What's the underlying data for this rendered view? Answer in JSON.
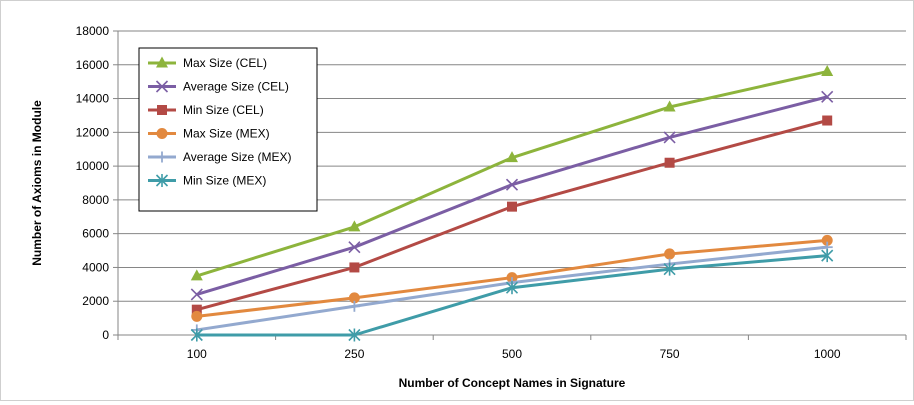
{
  "chart_data": {
    "type": "line",
    "title": "",
    "xlabel": "Number of Concept Names in Signature",
    "ylabel": "Number of Axioms in Module",
    "categories": [
      "100",
      "250",
      "500",
      "750",
      "1000"
    ],
    "ylim": [
      0,
      18000
    ],
    "yticks": [
      0,
      2000,
      4000,
      6000,
      8000,
      10000,
      12000,
      14000,
      16000,
      18000
    ],
    "grid": "horizontal",
    "legend_position": "top-left",
    "series": [
      {
        "name": "Max Size (CEL)",
        "values": [
          3500,
          6400,
          10500,
          13500,
          15600
        ],
        "color": "#8db43c",
        "marker": "triangle"
      },
      {
        "name": "Average Size (CEL)",
        "values": [
          2400,
          5200,
          8900,
          11700,
          14100
        ],
        "color": "#7b5ea4",
        "marker": "x"
      },
      {
        "name": "Min Size (CEL)",
        "values": [
          1500,
          4000,
          7600,
          10200,
          12700
        ],
        "color": "#b34a45",
        "marker": "square"
      },
      {
        "name": "Max Size (MEX)",
        "values": [
          1100,
          2200,
          3400,
          4800,
          5600
        ],
        "color": "#e2893f",
        "marker": "circle"
      },
      {
        "name": "Average Size (MEX)",
        "values": [
          300,
          1700,
          3100,
          4200,
          5200
        ],
        "color": "#93a9cf",
        "marker": "plus"
      },
      {
        "name": "Min Size (MEX)",
        "values": [
          0,
          0,
          2800,
          3900,
          4700
        ],
        "color": "#3f9ca8",
        "marker": "asterisk"
      }
    ]
  }
}
